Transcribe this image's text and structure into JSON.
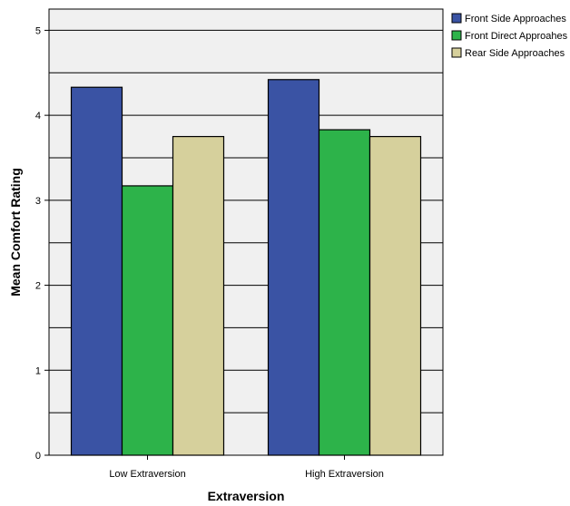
{
  "chart_data": {
    "type": "bar",
    "title": "",
    "xlabel": "Extraversion",
    "ylabel": "Mean Comfort Rating",
    "categories": [
      "Low Extraversion",
      "High Extraversion"
    ],
    "series": [
      {
        "name": "Front Side Approaches",
        "values": [
          4.33,
          4.42
        ],
        "color": "#3a53a4"
      },
      {
        "name": "Front Direct Approahes",
        "values": [
          3.17,
          3.83
        ],
        "color": "#2db34a"
      },
      {
        "name": "Rear Side Approaches",
        "values": [
          3.75,
          3.75
        ],
        "color": "#d6d09c"
      }
    ],
    "ylim": [
      0,
      5.25
    ],
    "yticks": [
      "0",
      "1",
      "2",
      "3",
      "4",
      "5"
    ],
    "grid": true,
    "legend": "top-right",
    "background_color": "#f0f0f0"
  }
}
